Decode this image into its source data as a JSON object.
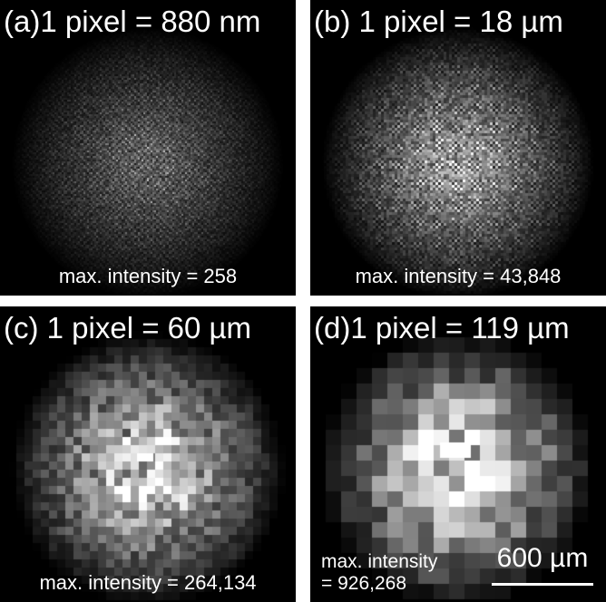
{
  "panels": [
    {
      "id": "a",
      "title": "(a)1 pixel = 880 nm",
      "max_intensity_label": "max. intensity = 258",
      "pixel_block": 2,
      "pattern": "fine"
    },
    {
      "id": "b",
      "title": "(b)  1 pixel = 18 µm",
      "max_intensity_label": "max. intensity = 43,848",
      "pixel_block": 3,
      "pattern": "fine-bright"
    },
    {
      "id": "c",
      "title": "(c)  1 pixel = 60 µm",
      "max_intensity_label": "max. intensity = 264,134",
      "pixel_block": 9,
      "pattern": "coarse"
    },
    {
      "id": "d",
      "title": "(d)1 pixel = 119 µm",
      "max_intensity_line1": "max. intensity",
      "max_intensity_line2": "= 926,268",
      "pixel_block": 17,
      "pattern": "blocky"
    }
  ],
  "scale_bar": {
    "label": "600 µm"
  }
}
